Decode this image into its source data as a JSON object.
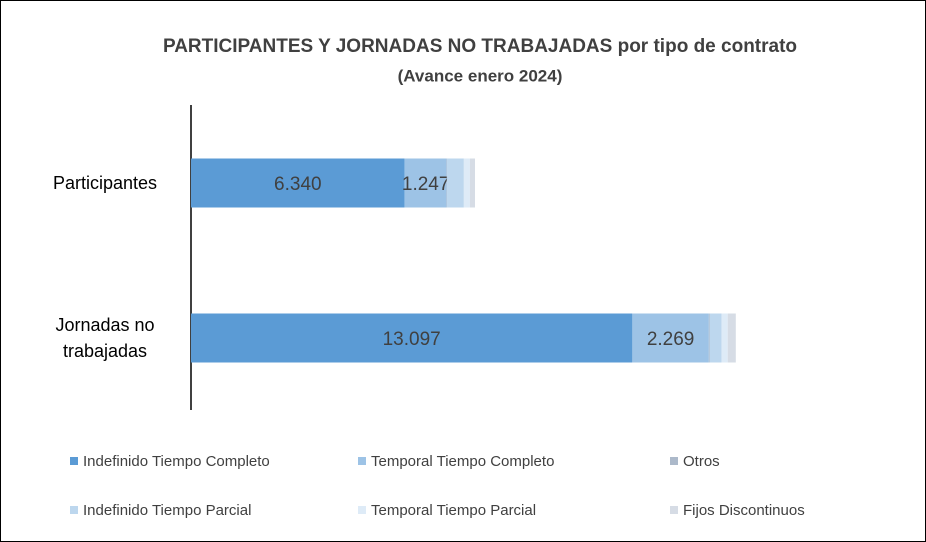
{
  "chart_data": {
    "type": "stacked_barh",
    "title": "PARTICIPANTES  Y JORNADAS NO TRABAJADAS  por tipo de contrato",
    "subtitle": "(Avance enero 2024)",
    "categories": [
      "Participantes",
      "Jornadas no trabajadas"
    ],
    "series": [
      {
        "name": "Indefinido Tiempo Completo",
        "color": "#5b9bd5",
        "values": [
          6340,
          13097
        ],
        "value_labels": [
          "6.340",
          "13.097"
        ]
      },
      {
        "name": "Temporal Tiempo Completo",
        "color": "#9dc3e6",
        "values": [
          1247,
          2269
        ],
        "value_labels": [
          "1.247",
          "2.269"
        ]
      },
      {
        "name": "Otros",
        "color": "#acb9ca",
        "values": [
          10,
          20
        ]
      },
      {
        "name": "Indefinido Tiempo Parcial",
        "color": "#bdd7ee",
        "values": [
          500,
          360
        ]
      },
      {
        "name": "Temporal Tiempo Parcial",
        "color": "#deebf7",
        "values": [
          180,
          180
        ]
      },
      {
        "name": "Fijos Discontinuos",
        "color": "#d6dce5",
        "values": [
          150,
          240
        ]
      }
    ],
    "xlim": [
      0,
      20000
    ],
    "legend": "bottom"
  }
}
